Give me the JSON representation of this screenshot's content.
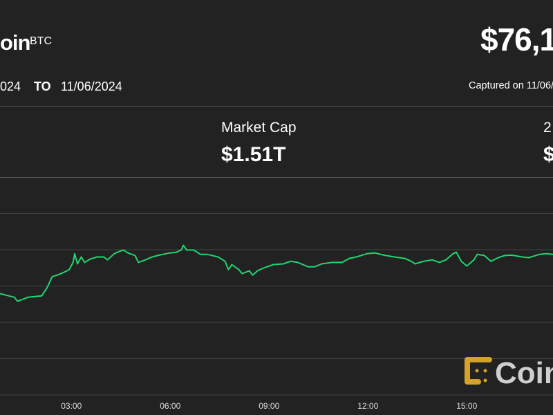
{
  "header": {
    "name_visible": "oin",
    "symbol": "BTC",
    "price_visible": "$76,1",
    "date_from_visible": "024",
    "to_label": "TO",
    "date_to": "11/06/2024",
    "captured_visible": "Captured on 11/06/"
  },
  "stats": [
    {
      "label": "Market Cap",
      "value": "$1.51T"
    },
    {
      "label": "2",
      "value": "$"
    }
  ],
  "logo": {
    "text_visible": "Coin",
    "icon_color": "#d4a12a"
  },
  "colors": {
    "background": "#222222",
    "line": "#1fd670",
    "grid": "#444444"
  },
  "chart_data": {
    "type": "line",
    "title": "",
    "xlabel": "",
    "ylabel": "",
    "x_ticks": [
      "03:00",
      "06:00",
      "09:00",
      "12:00",
      "15:00"
    ],
    "xlim": [
      "00:50",
      "17:37"
    ],
    "ylim": [
      0,
      6
    ],
    "y_tick_labels_shown": false,
    "grid": true,
    "series": [
      {
        "x": [
          "00:50",
          "01:16",
          "01:22",
          "01:41",
          "02:06",
          "02:16",
          "02:25",
          "02:34",
          "02:44",
          "02:56",
          "03:03",
          "03:06",
          "03:11",
          "03:18",
          "03:24",
          "03:34",
          "03:47",
          "03:59",
          "04:06",
          "04:18",
          "04:27",
          "04:35",
          "04:43",
          "04:56",
          "05:02",
          "05:15",
          "05:27",
          "05:40",
          "05:59",
          "06:11",
          "06:20",
          "06:24",
          "06:30",
          "06:43",
          "06:55",
          "07:08",
          "07:27",
          "07:40",
          "07:46",
          "07:52",
          "08:05",
          "08:11",
          "08:24",
          "08:30",
          "08:39",
          "08:49",
          "09:08",
          "09:26",
          "09:39",
          "09:52",
          "10:11",
          "10:23",
          "10:36",
          "10:55",
          "11:13",
          "11:26",
          "11:39",
          "11:58",
          "12:13",
          "12:29",
          "12:48",
          "13:07",
          "13:19",
          "13:26",
          "13:41",
          "13:57",
          "14:10",
          "14:22",
          "14:35",
          "14:41",
          "14:50",
          "15:00",
          "15:13",
          "15:19",
          "15:32",
          "15:44",
          "15:57",
          "16:09",
          "16:22",
          "16:41",
          "16:53",
          "17:12",
          "17:25",
          "17:37"
        ],
        "y": [
          2.79,
          2.69,
          2.58,
          2.69,
          2.73,
          2.96,
          3.26,
          3.3,
          3.36,
          3.45,
          3.65,
          3.89,
          3.61,
          3.8,
          3.65,
          3.74,
          3.8,
          3.8,
          3.72,
          3.89,
          3.95,
          3.99,
          3.91,
          3.84,
          3.65,
          3.72,
          3.8,
          3.85,
          3.91,
          3.93,
          3.99,
          4.12,
          3.99,
          3.99,
          3.87,
          3.87,
          3.8,
          3.68,
          3.45,
          3.59,
          3.45,
          3.34,
          3.42,
          3.3,
          3.42,
          3.49,
          3.59,
          3.61,
          3.68,
          3.65,
          3.53,
          3.53,
          3.61,
          3.65,
          3.65,
          3.76,
          3.8,
          3.89,
          3.91,
          3.85,
          3.8,
          3.76,
          3.68,
          3.61,
          3.68,
          3.72,
          3.65,
          3.72,
          3.89,
          3.93,
          3.68,
          3.55,
          3.72,
          3.87,
          3.84,
          3.68,
          3.78,
          3.84,
          3.85,
          3.8,
          3.78,
          3.87,
          3.89,
          3.87
        ]
      }
    ]
  }
}
